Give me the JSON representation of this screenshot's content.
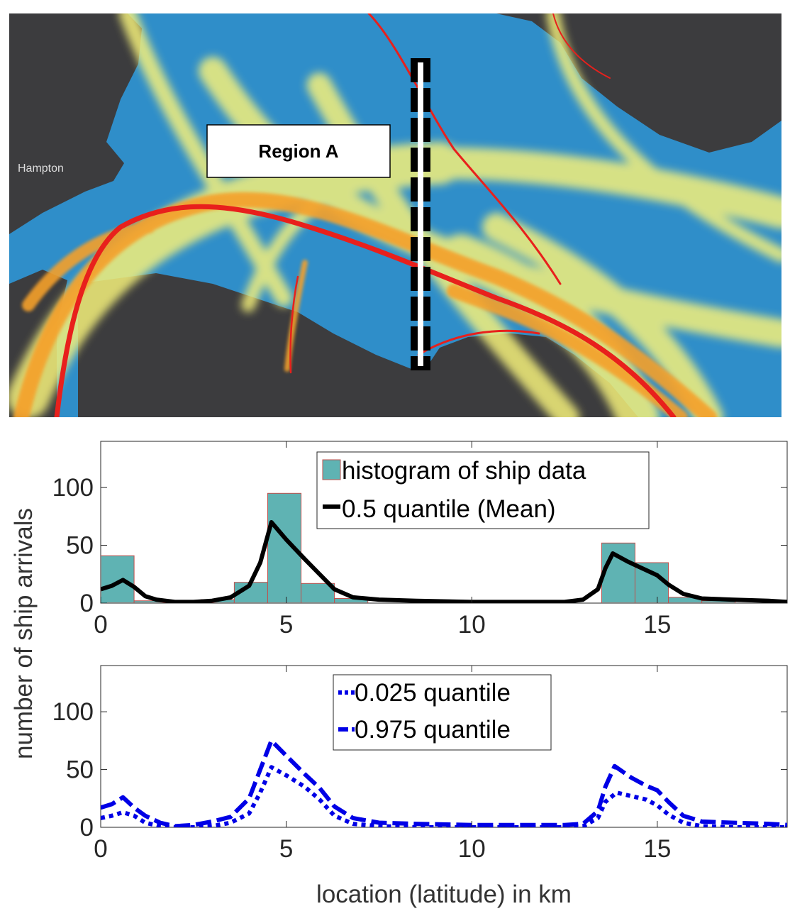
{
  "map": {
    "region_label": "Region A",
    "place_label": "Hampton",
    "colors": {
      "water": "#2f8ec9",
      "land": "#3c3c3e",
      "low_density": "#f4f07a",
      "mid_density": "#f5a02a",
      "high_density": "#e8201c"
    }
  },
  "shared": {
    "ylabel": "number of ship arrivals",
    "xlabel": "location (latitude) in km"
  },
  "chart_data": [
    {
      "type": "bar",
      "xlim": [
        0,
        18.5
      ],
      "ylim": [
        0,
        140
      ],
      "xticks": [
        "0",
        "5",
        "10",
        "15"
      ],
      "yticks": [
        "0",
        "50",
        "100"
      ],
      "legend_position": "top-center",
      "bar_color": "#5fb3b3",
      "bar_edge_color": "#c0504d",
      "bins": [
        {
          "x0": 0,
          "x1": 0.9,
          "value": 41
        },
        {
          "x0": 0.9,
          "x1": 1.8,
          "value": 2
        },
        {
          "x0": 1.8,
          "x1": 2.7,
          "value": 1
        },
        {
          "x0": 2.7,
          "x1": 3.6,
          "value": 3
        },
        {
          "x0": 3.6,
          "x1": 4.5,
          "value": 18
        },
        {
          "x0": 4.5,
          "x1": 5.4,
          "value": 95
        },
        {
          "x0": 5.4,
          "x1": 6.3,
          "value": 17
        },
        {
          "x0": 6.3,
          "x1": 7.2,
          "value": 4
        },
        {
          "x0": 7.2,
          "x1": 13.5,
          "value": 0
        },
        {
          "x0": 13.5,
          "x1": 14.4,
          "value": 52
        },
        {
          "x0": 14.4,
          "x1": 15.3,
          "value": 35
        },
        {
          "x0": 15.3,
          "x1": 16.2,
          "value": 5
        },
        {
          "x0": 16.2,
          "x1": 17.1,
          "value": 2
        },
        {
          "x0": 17.1,
          "x1": 18.5,
          "value": 0
        }
      ],
      "series": [
        {
          "name": "histogram of ship data",
          "kind": "bar"
        },
        {
          "name": "0.5 quantile (Mean)",
          "kind": "line",
          "color": "#000000",
          "dash": "solid",
          "points": [
            [
              0,
              12
            ],
            [
              0.3,
              15
            ],
            [
              0.6,
              20
            ],
            [
              0.9,
              14
            ],
            [
              1.2,
              6
            ],
            [
              1.5,
              3
            ],
            [
              2,
              1
            ],
            [
              2.5,
              1
            ],
            [
              3,
              2
            ],
            [
              3.5,
              5
            ],
            [
              4,
              15
            ],
            [
              4.3,
              35
            ],
            [
              4.6,
              70
            ],
            [
              5,
              55
            ],
            [
              5.5,
              38
            ],
            [
              5.9,
              25
            ],
            [
              6.3,
              12
            ],
            [
              6.8,
              5
            ],
            [
              7.5,
              3
            ],
            [
              8.5,
              2
            ],
            [
              10,
              1
            ],
            [
              11.5,
              1
            ],
            [
              12.5,
              1
            ],
            [
              13,
              3
            ],
            [
              13.4,
              12
            ],
            [
              13.6,
              30
            ],
            [
              13.8,
              43
            ],
            [
              14.2,
              36
            ],
            [
              14.6,
              30
            ],
            [
              15,
              24
            ],
            [
              15.3,
              16
            ],
            [
              15.7,
              8
            ],
            [
              16.2,
              4
            ],
            [
              17,
              3
            ],
            [
              18,
              2
            ],
            [
              18.5,
              1
            ]
          ]
        }
      ]
    },
    {
      "type": "line",
      "xlim": [
        0,
        18.5
      ],
      "ylim": [
        0,
        140
      ],
      "xticks": [
        "0",
        "5",
        "10",
        "15"
      ],
      "yticks": [
        "0",
        "50",
        "100"
      ],
      "legend_position": "top-center",
      "series": [
        {
          "name": "0.025 quantile",
          "color": "#0000e6",
          "dash": "dotted",
          "points": [
            [
              0,
              8
            ],
            [
              0.3,
              10
            ],
            [
              0.6,
              13
            ],
            [
              0.9,
              10
            ],
            [
              1.2,
              4
            ],
            [
              1.6,
              1
            ],
            [
              2,
              0
            ],
            [
              2.5,
              0
            ],
            [
              3,
              1
            ],
            [
              3.5,
              4
            ],
            [
              4,
              12
            ],
            [
              4.3,
              30
            ],
            [
              4.6,
              52
            ],
            [
              5,
              45
            ],
            [
              5.5,
              35
            ],
            [
              5.9,
              24
            ],
            [
              6.3,
              10
            ],
            [
              6.8,
              3
            ],
            [
              7.5,
              1
            ],
            [
              8.5,
              0
            ],
            [
              10,
              0
            ],
            [
              11.5,
              0
            ],
            [
              12.5,
              0
            ],
            [
              13,
              1
            ],
            [
              13.4,
              8
            ],
            [
              13.6,
              22
            ],
            [
              13.9,
              30
            ],
            [
              14.3,
              27
            ],
            [
              14.7,
              24
            ],
            [
              15,
              19
            ],
            [
              15.3,
              11
            ],
            [
              15.7,
              4
            ],
            [
              16.2,
              1
            ],
            [
              17,
              0
            ],
            [
              18,
              0
            ],
            [
              18.5,
              0
            ]
          ]
        },
        {
          "name": "0.975 quantile",
          "color": "#0000e6",
          "dash": "dashed",
          "points": [
            [
              0,
              17
            ],
            [
              0.3,
              20
            ],
            [
              0.6,
              26
            ],
            [
              0.9,
              17
            ],
            [
              1.2,
              10
            ],
            [
              1.6,
              4
            ],
            [
              2,
              1
            ],
            [
              2.5,
              2
            ],
            [
              3,
              5
            ],
            [
              3.5,
              9
            ],
            [
              4,
              25
            ],
            [
              4.3,
              50
            ],
            [
              4.6,
              75
            ],
            [
              5,
              62
            ],
            [
              5.5,
              46
            ],
            [
              5.9,
              34
            ],
            [
              6.3,
              18
            ],
            [
              6.8,
              8
            ],
            [
              7.5,
              4
            ],
            [
              8.5,
              3
            ],
            [
              10,
              2
            ],
            [
              11.5,
              2
            ],
            [
              12.5,
              2
            ],
            [
              13,
              3
            ],
            [
              13.4,
              14
            ],
            [
              13.6,
              35
            ],
            [
              13.85,
              53
            ],
            [
              14.3,
              43
            ],
            [
              14.7,
              36
            ],
            [
              15,
              32
            ],
            [
              15.3,
              22
            ],
            [
              15.7,
              10
            ],
            [
              16.2,
              5
            ],
            [
              17,
              4
            ],
            [
              18,
              3
            ],
            [
              18.5,
              2
            ]
          ]
        }
      ]
    }
  ]
}
